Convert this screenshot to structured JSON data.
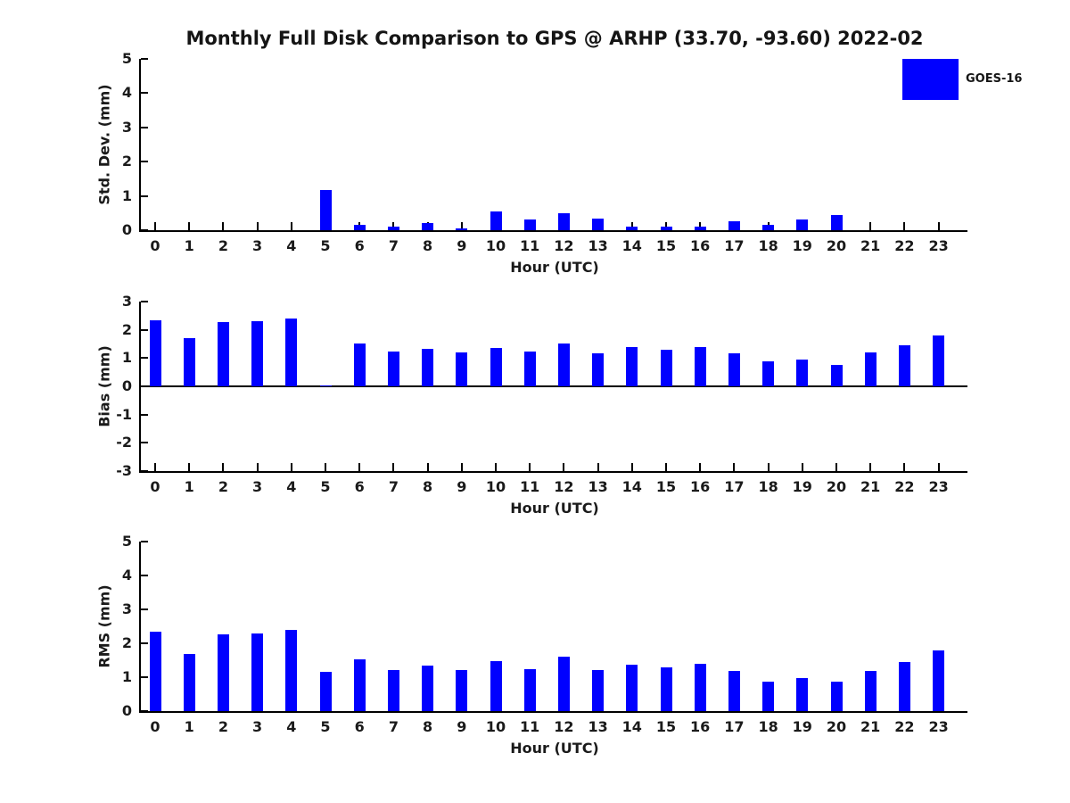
{
  "title": "Monthly Full Disk Comparison to GPS @ ARHP (33.70, -93.60) 2022-02",
  "legend": {
    "label": "GOES-16",
    "color": "#0000ff",
    "position": "top-right"
  },
  "chart_data": [
    {
      "type": "bar",
      "ylabel": "Std. Dev. (mm)",
      "xlabel": "Hour (UTC)",
      "categories": [
        0,
        1,
        2,
        3,
        4,
        5,
        6,
        7,
        8,
        9,
        10,
        11,
        12,
        13,
        14,
        15,
        16,
        17,
        18,
        19,
        20,
        21,
        22,
        23
      ],
      "values": [
        0,
        0,
        0,
        0,
        0,
        1.18,
        0.15,
        0.1,
        0.22,
        0.05,
        0.55,
        0.3,
        0.5,
        0.35,
        0.1,
        0.1,
        0.1,
        0.25,
        0.15,
        0.32,
        0.45,
        0,
        0,
        0
      ],
      "ylim": [
        0,
        5
      ],
      "yticks": [
        5,
        4,
        3,
        2,
        1,
        0
      ],
      "bar_color": "#0000ff",
      "grid": false,
      "series_name": "GOES-16"
    },
    {
      "type": "bar",
      "ylabel": "Bias (mm)",
      "xlabel": "Hour (UTC)",
      "categories": [
        0,
        1,
        2,
        3,
        4,
        5,
        6,
        7,
        8,
        9,
        10,
        11,
        12,
        13,
        14,
        15,
        16,
        17,
        18,
        19,
        20,
        21,
        22,
        23
      ],
      "values": [
        2.33,
        1.69,
        2.26,
        2.29,
        2.39,
        0.02,
        1.53,
        1.23,
        1.32,
        1.2,
        1.36,
        1.23,
        1.52,
        1.18,
        1.38,
        1.3,
        1.39,
        1.17,
        0.89,
        0.94,
        0.77,
        1.21,
        1.46,
        1.8
      ],
      "ylim": [
        -3,
        3
      ],
      "yticks": [
        3,
        2,
        1,
        0,
        -1,
        -2,
        -3
      ],
      "bar_color": "#0000ff",
      "grid": false,
      "series_name": "GOES-16"
    },
    {
      "type": "bar",
      "ylabel": "RMS (mm)",
      "xlabel": "Hour (UTC)",
      "categories": [
        0,
        1,
        2,
        3,
        4,
        5,
        6,
        7,
        8,
        9,
        10,
        11,
        12,
        13,
        14,
        15,
        16,
        17,
        18,
        19,
        20,
        21,
        22,
        23
      ],
      "values": [
        2.33,
        1.69,
        2.26,
        2.28,
        2.39,
        1.17,
        1.53,
        1.22,
        1.33,
        1.2,
        1.47,
        1.25,
        1.6,
        1.22,
        1.38,
        1.28,
        1.39,
        1.19,
        0.87,
        0.98,
        0.87,
        1.18,
        1.45,
        1.78
      ],
      "ylim": [
        0,
        5
      ],
      "yticks": [
        5,
        4,
        3,
        2,
        1,
        0
      ],
      "bar_color": "#0000ff",
      "grid": false,
      "series_name": "GOES-16"
    }
  ]
}
